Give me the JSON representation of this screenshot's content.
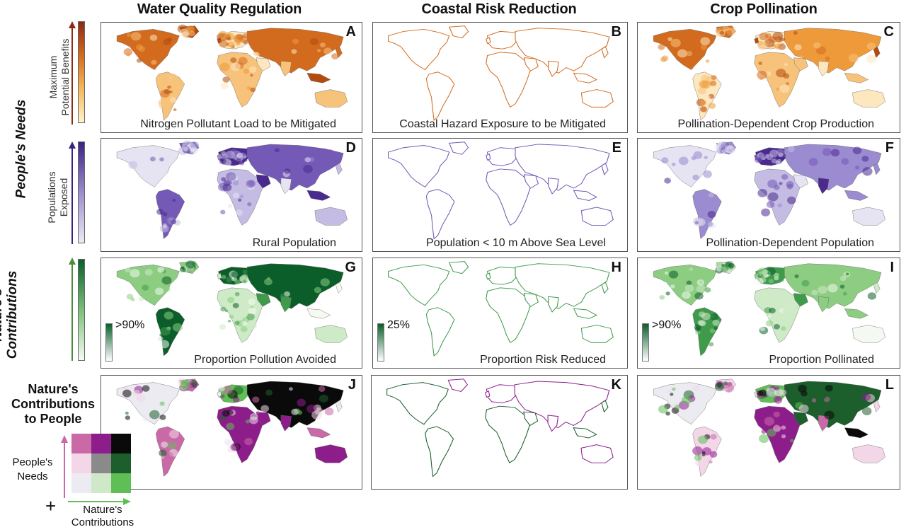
{
  "columns": [
    {
      "title": "Water Quality Regulation"
    },
    {
      "title": "Coastal Risk Reduction"
    },
    {
      "title": "Crop Pollination"
    }
  ],
  "rows": {
    "needs_group": "People's Needs",
    "benefits_label": "Maximum\nPotential Benefits",
    "exposed_label": "Populations\nExposed",
    "contrib_label": "Nature's\nContributions"
  },
  "panels": [
    {
      "letter": "A",
      "caption": "Nitrogen Pollutant Load to be Mitigated",
      "palette": "orange",
      "coverage": "land"
    },
    {
      "letter": "B",
      "caption": "Coastal Hazard Exposure to be Mitigated",
      "palette": "orange",
      "coverage": "coast"
    },
    {
      "letter": "C",
      "caption": "Pollination-Dependent Crop Production",
      "palette": "orange",
      "coverage": "land"
    },
    {
      "letter": "D",
      "caption": "Rural Population",
      "palette": "purple",
      "coverage": "land"
    },
    {
      "letter": "E",
      "caption": "Population < 10 m Above Sea Level",
      "palette": "purple",
      "coverage": "coast"
    },
    {
      "letter": "F",
      "caption": "Pollination-Dependent Population",
      "palette": "purple",
      "coverage": "land"
    },
    {
      "letter": "G",
      "caption": "Proportion Pollution Avoided",
      "palette": "green",
      "coverage": "land",
      "scale_max": ">90%"
    },
    {
      "letter": "H",
      "caption": "Proportion Risk Reduced",
      "palette": "green",
      "coverage": "coast",
      "scale_max": "25%"
    },
    {
      "letter": "I",
      "caption": "Proportion Pollinated",
      "palette": "green",
      "coverage": "land",
      "scale_max": ">90%"
    },
    {
      "letter": "J",
      "caption": "",
      "palette": "bivariate",
      "coverage": "land"
    },
    {
      "letter": "K",
      "caption": "",
      "palette": "bivariate",
      "coverage": "coast"
    },
    {
      "letter": "L",
      "caption": "",
      "palette": "bivariate",
      "coverage": "land"
    }
  ],
  "legend": {
    "title": "Nature's\nContributions\nto People",
    "y_axis": "People's\nNeeds",
    "x_axis": "Nature's\nContributions",
    "plus": "+",
    "grid_colors": [
      [
        "#c96aa6",
        "#8e1d8c",
        "#0a0a0a"
      ],
      [
        "#f3d7e8",
        "#8a8a8a",
        "#1c5e2c"
      ],
      [
        "#ecebf2",
        "#cfe9c8",
        "#5fbf55"
      ]
    ]
  },
  "colors": {
    "orange_dark": "#b34a0e",
    "orange_light": "#fde7bf",
    "purple_dark": "#4b2a8f",
    "purple_light": "#e6e3f2",
    "green_dark": "#0b5e2a",
    "green_light": "#f4faf1"
  }
}
